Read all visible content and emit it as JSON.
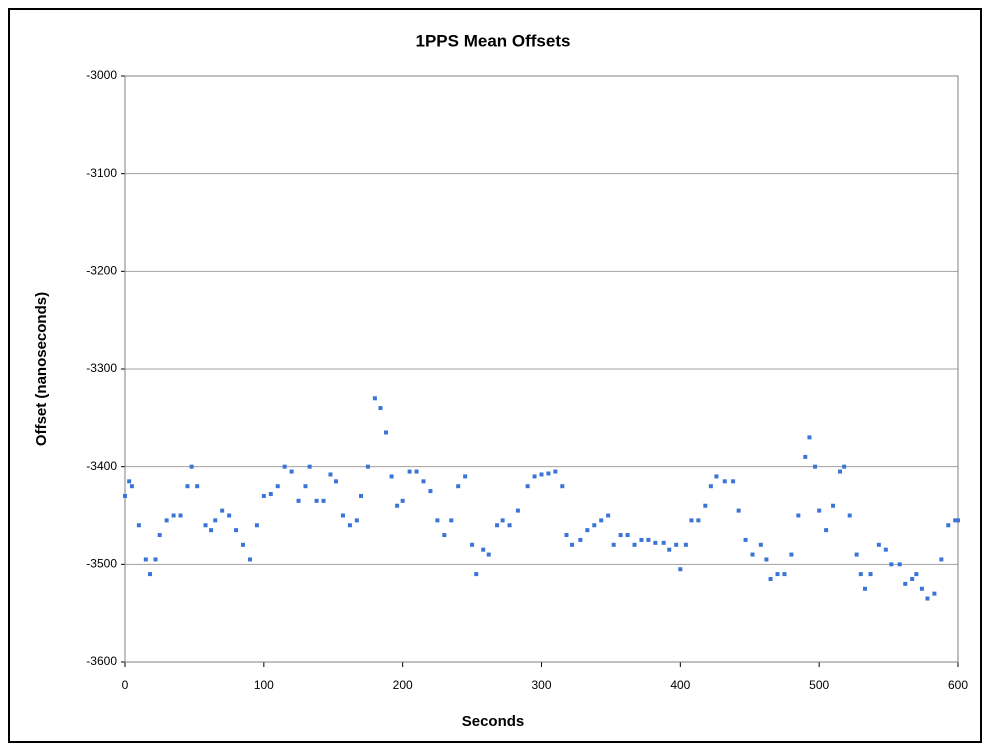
{
  "chart_data": {
    "type": "scatter",
    "title": "1PPS Mean Offsets",
    "x_label": "Seconds",
    "y_label": "Offset (nanoseconds)",
    "xlim": [
      0,
      600
    ],
    "xticks": [
      0,
      100,
      200,
      300,
      400,
      500,
      600
    ],
    "ylim": [
      -3600,
      -3000
    ],
    "yticks": [
      -3600,
      -3500,
      -3400,
      -3300,
      -3200,
      -3100,
      -3000
    ],
    "grid": true,
    "series": [
      {
        "color": "#3a74d6",
        "x": [
          0,
          3,
          5,
          10,
          15,
          18,
          22,
          25,
          30,
          35,
          40,
          45,
          48,
          52,
          58,
          62,
          65,
          70,
          75,
          80,
          85,
          90,
          95,
          100,
          105,
          110,
          115,
          120,
          125,
          130,
          133,
          138,
          143,
          148,
          152,
          157,
          162,
          167,
          170,
          175,
          180,
          184,
          188,
          192,
          196,
          200,
          205,
          210,
          215,
          220,
          225,
          230,
          235,
          240,
          245,
          250,
          253,
          258,
          262,
          268,
          272,
          277,
          283,
          290,
          295,
          300,
          305,
          310,
          315,
          318,
          322,
          328,
          333,
          338,
          343,
          348,
          352,
          357,
          362,
          367,
          372,
          377,
          382,
          388,
          392,
          397,
          400,
          404,
          408,
          413,
          418,
          422,
          426,
          432,
          438,
          442,
          447,
          452,
          458,
          462,
          465,
          470,
          475,
          480,
          485,
          490,
          493,
          497,
          500,
          505,
          510,
          515,
          518,
          522,
          527,
          530,
          533,
          537,
          543,
          548,
          552,
          558,
          562,
          567,
          570,
          574,
          578,
          583,
          588,
          593,
          598,
          600
        ],
        "values": [
          -3430,
          -3415,
          -3420,
          -3460,
          -3495,
          -3510,
          -3495,
          -3470,
          -3455,
          -3450,
          -3450,
          -3420,
          -3400,
          -3420,
          -3460,
          -3465,
          -3455,
          -3445,
          -3450,
          -3465,
          -3480,
          -3495,
          -3460,
          -3430,
          -3428,
          -3420,
          -3400,
          -3405,
          -3435,
          -3420,
          -3400,
          -3435,
          -3435,
          -3408,
          -3415,
          -3450,
          -3460,
          -3455,
          -3430,
          -3400,
          -3330,
          -3340,
          -3365,
          -3410,
          -3440,
          -3435,
          -3405,
          -3405,
          -3415,
          -3425,
          -3455,
          -3470,
          -3455,
          -3420,
          -3410,
          -3480,
          -3510,
          -3485,
          -3490,
          -3460,
          -3455,
          -3460,
          -3445,
          -3420,
          -3410,
          -3408,
          -3407,
          -3405,
          -3420,
          -3470,
          -3480,
          -3475,
          -3465,
          -3460,
          -3455,
          -3450,
          -3480,
          -3470,
          -3470,
          -3480,
          -3475,
          -3475,
          -3478,
          -3478,
          -3485,
          -3480,
          -3505,
          -3480,
          -3455,
          -3455,
          -3440,
          -3420,
          -3410,
          -3415,
          -3415,
          -3445,
          -3475,
          -3490,
          -3480,
          -3495,
          -3515,
          -3510,
          -3510,
          -3490,
          -3450,
          -3390,
          -3370,
          -3400,
          -3445,
          -3465,
          -3440,
          -3405,
          -3400,
          -3450,
          -3490,
          -3510,
          -3525,
          -3510,
          -3480,
          -3485,
          -3500,
          -3500,
          -3520,
          -3515,
          -3510,
          -3525,
          -3535,
          -3530,
          -3495,
          -3460,
          -3455,
          -3455
        ]
      }
    ]
  }
}
